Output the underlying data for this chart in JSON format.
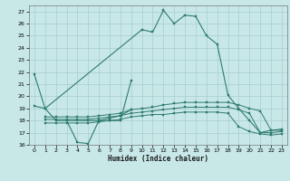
{
  "xlabel": "Humidex (Indice chaleur)",
  "xlim": [
    -0.5,
    23.5
  ],
  "ylim": [
    16,
    27.5
  ],
  "yticks": [
    16,
    17,
    18,
    19,
    20,
    21,
    22,
    23,
    24,
    25,
    26,
    27
  ],
  "xticks": [
    0,
    1,
    2,
    3,
    4,
    5,
    6,
    7,
    8,
    9,
    10,
    11,
    12,
    13,
    14,
    15,
    16,
    17,
    18,
    19,
    20,
    21,
    22,
    23
  ],
  "bg_color": "#c8e8e8",
  "grid_color": "#a8cccc",
  "line_color": "#2e7b6e",
  "series": {
    "main": {
      "x": [
        0,
        1,
        10,
        11,
        12,
        13,
        14,
        15,
        16,
        17,
        18,
        19,
        20,
        21,
        22,
        23
      ],
      "y": [
        21.8,
        19.0,
        25.5,
        25.3,
        27.1,
        26.0,
        26.7,
        26.6,
        25.0,
        24.3,
        20.1,
        19.0,
        18.0,
        17.0,
        17.2,
        17.2
      ]
    },
    "line2": {
      "x": [
        0,
        1,
        2,
        5,
        6,
        7,
        8,
        9
      ],
      "y": [
        19.2,
        19.0,
        18.0,
        18.0,
        18.0,
        18.2,
        18.4,
        18.9
      ]
    },
    "line2b": {
      "x": [
        3,
        4,
        5,
        6,
        7,
        8,
        9
      ],
      "y": [
        18.0,
        16.2,
        16.1,
        18.0,
        18.0,
        18.0,
        21.3
      ]
    },
    "line3": {
      "x": [
        1,
        2,
        3,
        4,
        5,
        6,
        7,
        8,
        9,
        10,
        11,
        12,
        13,
        14,
        15,
        16,
        17,
        18,
        19,
        20,
        21,
        22,
        23
      ],
      "y": [
        18.3,
        18.3,
        18.3,
        18.3,
        18.3,
        18.4,
        18.5,
        18.6,
        18.9,
        19.0,
        19.1,
        19.3,
        19.4,
        19.5,
        19.5,
        19.5,
        19.5,
        19.5,
        19.3,
        19.0,
        18.8,
        17.2,
        17.3
      ]
    },
    "line4": {
      "x": [
        1,
        2,
        3,
        4,
        5,
        6,
        7,
        8,
        9,
        10,
        11,
        12,
        13,
        14,
        15,
        16,
        17,
        18,
        19,
        20,
        21,
        22,
        23
      ],
      "y": [
        18.1,
        18.1,
        18.1,
        18.1,
        18.1,
        18.2,
        18.3,
        18.4,
        18.6,
        18.7,
        18.8,
        18.9,
        19.0,
        19.1,
        19.1,
        19.1,
        19.1,
        19.1,
        18.9,
        18.6,
        17.0,
        17.0,
        17.1
      ]
    },
    "line5": {
      "x": [
        1,
        2,
        3,
        4,
        5,
        6,
        7,
        8,
        9,
        10,
        11,
        12,
        13,
        14,
        15,
        16,
        17,
        18,
        19,
        20,
        21,
        22,
        23
      ],
      "y": [
        17.8,
        17.8,
        17.8,
        17.8,
        17.8,
        17.9,
        18.0,
        18.1,
        18.3,
        18.4,
        18.5,
        18.5,
        18.6,
        18.7,
        18.7,
        18.7,
        18.7,
        18.6,
        17.5,
        17.1,
        16.9,
        16.8,
        16.9
      ]
    }
  }
}
